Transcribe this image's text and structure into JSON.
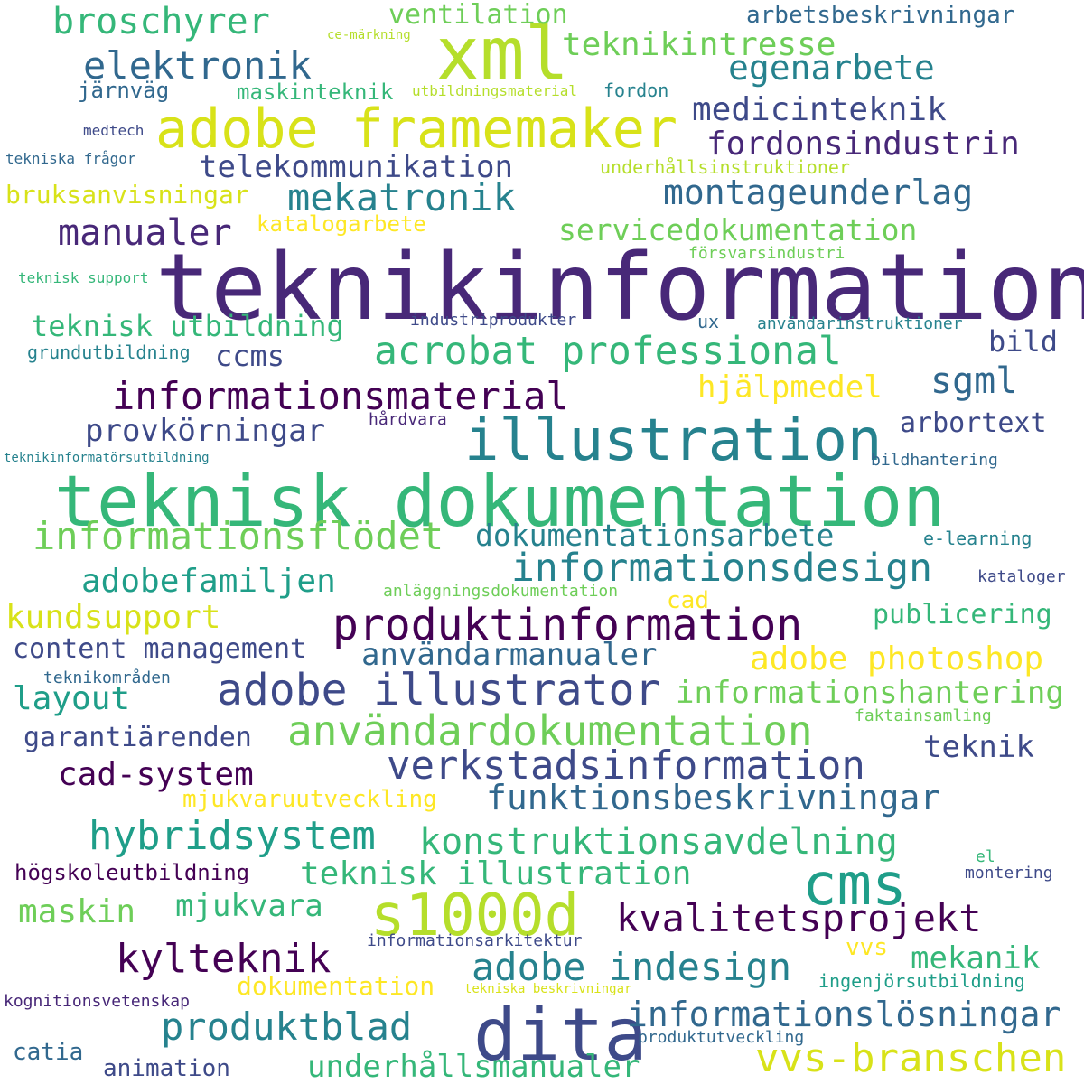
{
  "colors": {
    "background": "#ffffff",
    "palette": [
      "#440154",
      "#482878",
      "#3e4a89",
      "#31688e",
      "#26828e",
      "#1f9e89",
      "#35b779",
      "#6ece58",
      "#b5de2b",
      "#fde725"
    ]
  },
  "words": [
    {
      "text": "teknikinformation",
      "color": "#482878"
    },
    {
      "text": "teknisk dokumentation",
      "color": "#35b779"
    },
    {
      "text": "illustration",
      "color": "#26828e"
    },
    {
      "text": "dita",
      "color": "#3e4a89"
    },
    {
      "text": "xml",
      "color": "#b5de2b"
    },
    {
      "text": "adobe framemaker",
      "color": "#d8e219"
    },
    {
      "text": "cms",
      "color": "#1f9e89"
    },
    {
      "text": "s1000d",
      "color": "#b5de2b"
    },
    {
      "text": "produktinformation",
      "color": "#440154"
    },
    {
      "text": "användardokumentation",
      "color": "#6ece58"
    },
    {
      "text": "adobe illustrator",
      "color": "#3e4a89"
    },
    {
      "text": "verkstadsinformation",
      "color": "#3e4a89"
    },
    {
      "text": "informationsmaterial",
      "color": "#440154"
    },
    {
      "text": "acrobat professional",
      "color": "#35b779"
    },
    {
      "text": "informationsflödet",
      "color": "#6ece58"
    },
    {
      "text": "informationsdesign",
      "color": "#26828e"
    },
    {
      "text": "informationslösningar",
      "color": "#31688e"
    },
    {
      "text": "vvs-branschen",
      "color": "#d8e219"
    },
    {
      "text": "adobe indesign",
      "color": "#26828e"
    },
    {
      "text": "kylteknik",
      "color": "#440154"
    },
    {
      "text": "produktblad",
      "color": "#26828e"
    },
    {
      "text": "hybridsystem",
      "color": "#1f9e89"
    },
    {
      "text": "konstruktionsavdelning",
      "color": "#35b779"
    },
    {
      "text": "kvalitetsprojekt",
      "color": "#440154"
    },
    {
      "text": "funktionsbeskrivningar",
      "color": "#31688e"
    },
    {
      "text": "mekatronik",
      "color": "#26828e"
    },
    {
      "text": "elektronik",
      "color": "#31688e"
    },
    {
      "text": "broschyrer",
      "color": "#35b779"
    },
    {
      "text": "teknikintresse",
      "color": "#6ece58"
    },
    {
      "text": "egenarbete",
      "color": "#26828e"
    },
    {
      "text": "medicinteknik",
      "color": "#3e4a89"
    },
    {
      "text": "fordonsindustrin",
      "color": "#482878"
    },
    {
      "text": "telekommunikation",
      "color": "#3e4a89"
    },
    {
      "text": "montageunderlag",
      "color": "#31688e"
    },
    {
      "text": "manualer",
      "color": "#482878"
    },
    {
      "text": "servicedokumentation",
      "color": "#6ece58"
    },
    {
      "text": "sgml",
      "color": "#31688e"
    },
    {
      "text": "hjälpmedel",
      "color": "#fde725"
    },
    {
      "text": "provkörningar",
      "color": "#3e4a89"
    },
    {
      "text": "arbortext",
      "color": "#3e4a89"
    },
    {
      "text": "adobefamiljen",
      "color": "#1f9e89"
    },
    {
      "text": "dokumentationsarbete",
      "color": "#26828e"
    },
    {
      "text": "kundsupport",
      "color": "#d8e219"
    },
    {
      "text": "content management",
      "color": "#3e4a89"
    },
    {
      "text": "användarmanualer",
      "color": "#31688e"
    },
    {
      "text": "adobe photoshop",
      "color": "#fde725"
    },
    {
      "text": "layout",
      "color": "#1f9e89"
    },
    {
      "text": "informationshantering",
      "color": "#6ece58"
    },
    {
      "text": "garantiärenden",
      "color": "#3e4a89"
    },
    {
      "text": "teknik",
      "color": "#3e4a89"
    },
    {
      "text": "cad-system",
      "color": "#440154"
    },
    {
      "text": "teknisk illustration",
      "color": "#35b779"
    },
    {
      "text": "mjukvara",
      "color": "#35b779"
    },
    {
      "text": "maskin",
      "color": "#6ece58"
    },
    {
      "text": "mekanik",
      "color": "#35b779"
    },
    {
      "text": "vvs",
      "color": "#fde725"
    },
    {
      "text": "underhållsmanualer",
      "color": "#35b779"
    },
    {
      "text": "ventilation",
      "color": "#6ece58"
    },
    {
      "text": "arbetsbeskrivningar",
      "color": "#31688e"
    },
    {
      "text": "ce-märkning",
      "color": "#b5de2b"
    },
    {
      "text": "järnväg",
      "color": "#31688e"
    },
    {
      "text": "maskinteknik",
      "color": "#35b779"
    },
    {
      "text": "utbildningsmaterial",
      "color": "#b5de2b"
    },
    {
      "text": "fordon",
      "color": "#26828e"
    },
    {
      "text": "medtech",
      "color": "#3e4a89"
    },
    {
      "text": "tekniska frågor",
      "color": "#31688e"
    },
    {
      "text": "underhållsinstruktioner",
      "color": "#b5de2b"
    },
    {
      "text": "bruksanvisningar",
      "color": "#d8e219"
    },
    {
      "text": "katalogarbete",
      "color": "#fde725"
    },
    {
      "text": "försvarsindustri",
      "color": "#6ece58"
    },
    {
      "text": "teknisk support",
      "color": "#35b779"
    },
    {
      "text": "teknisk utbildning",
      "color": "#35b779"
    },
    {
      "text": "industriprodukter",
      "color": "#3e4a89"
    },
    {
      "text": "ux",
      "color": "#31688e"
    },
    {
      "text": "användarinstruktioner",
      "color": "#26828e"
    },
    {
      "text": "bild",
      "color": "#3e4a89"
    },
    {
      "text": "grundutbildning",
      "color": "#26828e"
    },
    {
      "text": "ccms",
      "color": "#3e4a89"
    },
    {
      "text": "hårdvara",
      "color": "#482878"
    },
    {
      "text": "teknikinformatörsutbildning",
      "color": "#26828e"
    },
    {
      "text": "bildhantering",
      "color": "#31688e"
    },
    {
      "text": "e-learning",
      "color": "#26828e"
    },
    {
      "text": "kataloger",
      "color": "#3e4a89"
    },
    {
      "text": "anläggningsdokumentation",
      "color": "#6ece58"
    },
    {
      "text": "cad",
      "color": "#fde725"
    },
    {
      "text": "publicering",
      "color": "#35b779"
    },
    {
      "text": "teknikområden",
      "color": "#31688e"
    },
    {
      "text": "faktainsamling",
      "color": "#6ece58"
    },
    {
      "text": "mjukvaruutveckling",
      "color": "#fde725"
    },
    {
      "text": "högskoleutbildning",
      "color": "#440154"
    },
    {
      "text": "el",
      "color": "#35b779"
    },
    {
      "text": "montering",
      "color": "#3e4a89"
    },
    {
      "text": "informationsarkitektur",
      "color": "#3e4a89"
    },
    {
      "text": "dokumentation",
      "color": "#fde725"
    },
    {
      "text": "ingenjörsutbildning",
      "color": "#1f9e89"
    },
    {
      "text": "kognitionsvetenskap",
      "color": "#482878"
    },
    {
      "text": "tekniska beskrivningar",
      "color": "#d8e219"
    },
    {
      "text": "produktutveckling",
      "color": "#31688e"
    },
    {
      "text": "catia",
      "color": "#31688e"
    },
    {
      "text": "animation",
      "color": "#3e4a89"
    }
  ]
}
